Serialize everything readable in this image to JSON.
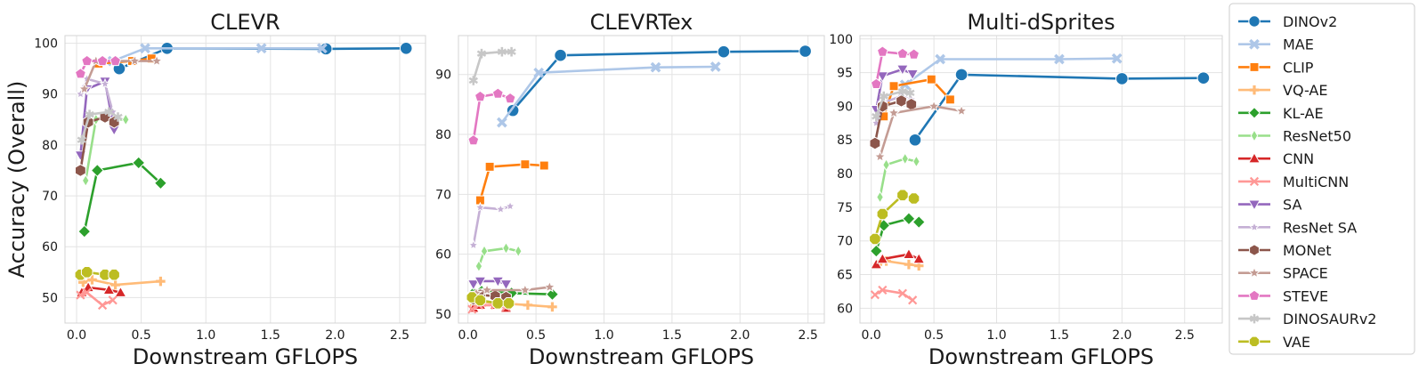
{
  "chart_data": {
    "type": "line",
    "ylabel": "Accuracy (Overall)",
    "legend_position": "right",
    "legend": [
      {
        "name": "DINOv2",
        "color": "#1f77b4",
        "marker": "circle"
      },
      {
        "name": "MAE",
        "color": "#aec7e8",
        "marker": "x"
      },
      {
        "name": "CLIP",
        "color": "#ff7f0e",
        "marker": "square"
      },
      {
        "name": "VQ-AE",
        "color": "#ffbb78",
        "marker": "plus"
      },
      {
        "name": "KL-AE",
        "color": "#2ca02c",
        "marker": "diamond"
      },
      {
        "name": "ResNet50",
        "color": "#98df8a",
        "marker": "thin-diamond"
      },
      {
        "name": "CNN",
        "color": "#d62728",
        "marker": "triangle-up"
      },
      {
        "name": "MultiCNN",
        "color": "#ff9896",
        "marker": "x-thin"
      },
      {
        "name": "SA",
        "color": "#9467bd",
        "marker": "triangle-down"
      },
      {
        "name": "ResNet SA",
        "color": "#c5b0d5",
        "marker": "star-small"
      },
      {
        "name": "MONet",
        "color": "#8c564b",
        "marker": "hexagon"
      },
      {
        "name": "SPACE",
        "color": "#c49c94",
        "marker": "star"
      },
      {
        "name": "STEVE",
        "color": "#e377c2",
        "marker": "pentagon"
      },
      {
        "name": "DINOSAURv2",
        "color": "#c7c7c7",
        "marker": "asterisk"
      },
      {
        "name": "VAE",
        "color": "#bcbd22",
        "marker": "octagon"
      }
    ],
    "panels": [
      {
        "title": "CLEVR",
        "xlabel": "Downstream GFLOPS",
        "xlim": [
          -0.09,
          2.7
        ],
        "ylim": [
          45,
          101.5
        ],
        "xticks": [
          0.0,
          0.5,
          1.0,
          1.5,
          2.0,
          2.5
        ],
        "yticks": [
          50,
          60,
          70,
          80,
          90,
          100
        ],
        "series": [
          {
            "name": "DINOv2",
            "x": [
              0.33,
              0.7,
              1.93,
              2.55
            ],
            "y": [
              95,
              99,
              98.9,
              99
            ]
          },
          {
            "name": "MAE",
            "x": [
              0.28,
              0.53,
              1.43,
              1.9
            ],
            "y": [
              96.5,
              99,
              99,
              99
            ]
          },
          {
            "name": "CLIP",
            "x": [
              0.17,
              0.43,
              0.58
            ],
            "y": [
              96,
              96.5,
              97
            ]
          },
          {
            "name": "VQ-AE",
            "x": [
              0.05,
              0.12,
              0.3,
              0.65
            ],
            "y": [
              53,
              53.5,
              52.5,
              53.2
            ]
          },
          {
            "name": "KL-AE",
            "x": [
              0.06,
              0.16,
              0.48,
              0.65
            ],
            "y": [
              63,
              75,
              76.5,
              72.5
            ]
          },
          {
            "name": "ResNet50",
            "x": [
              0.07,
              0.15,
              0.38
            ],
            "y": [
              73,
              85,
              85
            ]
          },
          {
            "name": "CNN",
            "x": [
              0.04,
              0.09,
              0.25,
              0.34
            ],
            "y": [
              51,
              52,
              51.5,
              51
            ]
          },
          {
            "name": "MultiCNN",
            "x": [
              0.03,
              0.08,
              0.2,
              0.28
            ],
            "y": [
              50.5,
              51,
              48.5,
              49.5
            ]
          },
          {
            "name": "SA",
            "x": [
              0.03,
              0.08,
              0.22,
              0.29
            ],
            "y": [
              78,
              91,
              92.5,
              83
            ]
          },
          {
            "name": "ResNet SA",
            "x": [
              0.03,
              0.08,
              0.22,
              0.28
            ],
            "y": [
              90,
              93,
              92,
              86.5
            ]
          },
          {
            "name": "MONet",
            "x": [
              0.03,
              0.09,
              0.22,
              0.29
            ],
            "y": [
              75,
              84.5,
              85.5,
              84.5
            ]
          },
          {
            "name": "SPACE",
            "x": [
              0.06,
              0.15,
              0.45,
              0.62
            ],
            "y": [
              91,
              96.5,
              96.5,
              96.5
            ]
          },
          {
            "name": "STEVE",
            "x": [
              0.03,
              0.08,
              0.2,
              0.3
            ],
            "y": [
              94,
              96.5,
              96.5,
              96.5
            ]
          },
          {
            "name": "DINOSAURv2",
            "x": [
              0.04,
              0.1,
              0.25,
              0.32
            ],
            "y": [
              81,
              86,
              86.5,
              85.5
            ]
          },
          {
            "name": "VAE",
            "x": [
              0.03,
              0.08,
              0.22,
              0.29
            ],
            "y": [
              54.5,
              55,
              54.5,
              54.5
            ]
          }
        ]
      },
      {
        "title": "CLEVRTex",
        "xlabel": "Downstream GFLOPS",
        "xlim": [
          -0.07,
          2.62
        ],
        "ylim": [
          48.5,
          96.5
        ],
        "xticks": [
          0.0,
          0.5,
          1.0,
          1.5,
          2.0,
          2.5
        ],
        "yticks": [
          50,
          60,
          70,
          80,
          90
        ],
        "series": [
          {
            "name": "DINOv2",
            "x": [
              0.33,
              0.68,
              1.88,
              2.48
            ],
            "y": [
              84,
              93.2,
              93.8,
              93.9
            ]
          },
          {
            "name": "MAE",
            "x": [
              0.25,
              0.52,
              1.38,
              1.82
            ],
            "y": [
              82,
              90.3,
              91.2,
              91.3
            ]
          },
          {
            "name": "CLIP",
            "x": [
              0.09,
              0.16,
              0.42,
              0.56
            ],
            "y": [
              69,
              74.6,
              75,
              74.8
            ]
          },
          {
            "name": "VQ-AE",
            "x": [
              0.05,
              0.12,
              0.44,
              0.62
            ],
            "y": [
              51.5,
              52,
              51.5,
              51.2
            ]
          },
          {
            "name": "KL-AE",
            "x": [
              0.04,
              0.1,
              0.32,
              0.62
            ],
            "y": [
              53.5,
              53.8,
              53.5,
              53.3
            ]
          },
          {
            "name": "ResNet50",
            "x": [
              0.08,
              0.12,
              0.28,
              0.37
            ],
            "y": [
              58,
              60.5,
              61,
              60.5
            ]
          },
          {
            "name": "CNN",
            "x": [
              0.04,
              0.09,
              0.2,
              0.28
            ],
            "y": [
              51,
              51.5,
              51.5,
              51
            ]
          },
          {
            "name": "MultiCNN",
            "x": [
              0.03,
              0.08,
              0.2,
              0.28
            ],
            "y": [
              50.8,
              51.5,
              51.5,
              51.2
            ]
          },
          {
            "name": "SA",
            "x": [
              0.04,
              0.09,
              0.22,
              0.28
            ],
            "y": [
              55,
              55.5,
              55.5,
              55
            ]
          },
          {
            "name": "ResNet SA",
            "x": [
              0.04,
              0.09,
              0.24,
              0.31
            ],
            "y": [
              61.5,
              67.8,
              67.5,
              68
            ]
          },
          {
            "name": "MONet",
            "x": [
              0.04,
              0.09,
              0.2,
              0.28
            ],
            "y": [
              52.5,
              53.2,
              53,
              52.8
            ]
          },
          {
            "name": "SPACE",
            "x": [
              0.06,
              0.14,
              0.42,
              0.6
            ],
            "y": [
              53.5,
              54,
              54,
              54.5
            ]
          },
          {
            "name": "STEVE",
            "x": [
              0.04,
              0.09,
              0.22,
              0.31
            ],
            "y": [
              79,
              86.3,
              86.8,
              86
            ]
          },
          {
            "name": "DINOSAURv2",
            "x": [
              0.04,
              0.1,
              0.25,
              0.32
            ],
            "y": [
              89,
              93.5,
              93.8,
              93.8
            ]
          },
          {
            "name": "VAE",
            "x": [
              0.03,
              0.09,
              0.22,
              0.3
            ],
            "y": [
              52.8,
              52.3,
              51.8,
              51.8
            ]
          }
        ]
      },
      {
        "title": "Multi-dSprites",
        "xlabel": "Downstream GFLOPS",
        "xlim": [
          -0.09,
          2.8
        ],
        "ylim": [
          57.8,
          100.5
        ],
        "xticks": [
          0.0,
          0.5,
          1.0,
          1.5,
          2.0,
          2.5
        ],
        "yticks": [
          60,
          65,
          70,
          75,
          80,
          85,
          90,
          95,
          100
        ],
        "series": [
          {
            "name": "DINOv2",
            "x": [
              0.35,
              0.72,
              2.0,
              2.65
            ],
            "y": [
              85,
              94.7,
              94.1,
              94.2
            ]
          },
          {
            "name": "MAE",
            "x": [
              0.27,
              0.55,
              1.5,
              1.96
            ],
            "y": [
              93.2,
              97,
              97,
              97.1
            ]
          },
          {
            "name": "CLIP",
            "x": [
              0.1,
              0.18,
              0.48,
              0.63
            ],
            "y": [
              88.5,
              93,
              94,
              91
            ]
          },
          {
            "name": "VQ-AE",
            "x": [
              0.05,
              0.12,
              0.3,
              0.38
            ],
            "y": [
              66.5,
              67,
              66.5,
              66.3
            ]
          },
          {
            "name": "KL-AE",
            "x": [
              0.04,
              0.1,
              0.3,
              0.38
            ],
            "y": [
              68.5,
              72.3,
              73.3,
              72.8
            ]
          },
          {
            "name": "ResNet50",
            "x": [
              0.07,
              0.12,
              0.27,
              0.36
            ],
            "y": [
              76.5,
              81.3,
              82.2,
              81.8
            ]
          },
          {
            "name": "CNN",
            "x": [
              0.04,
              0.09,
              0.3,
              0.38
            ],
            "y": [
              66.5,
              67.3,
              68,
              67.3
            ]
          },
          {
            "name": "MultiCNN",
            "x": [
              0.03,
              0.09,
              0.25,
              0.33
            ],
            "y": [
              62,
              62.7,
              62.2,
              61.2
            ]
          },
          {
            "name": "SA",
            "x": [
              0.04,
              0.09,
              0.25,
              0.33
            ],
            "y": [
              89.5,
              94.5,
              95.5,
              94.8
            ]
          },
          {
            "name": "ResNet SA",
            "x": [
              0.04,
              0.09,
              0.24,
              0.32
            ],
            "y": [
              87.5,
              90.5,
              91.5,
              91
            ]
          },
          {
            "name": "MONet",
            "x": [
              0.03,
              0.09,
              0.24,
              0.32
            ],
            "y": [
              84.5,
              90,
              90.8,
              90.3
            ]
          },
          {
            "name": "SPACE",
            "x": [
              0.07,
              0.18,
              0.5,
              0.72
            ],
            "y": [
              82.5,
              89,
              90,
              89.3
            ]
          },
          {
            "name": "STEVE",
            "x": [
              0.04,
              0.09,
              0.25,
              0.34
            ],
            "y": [
              93.3,
              98.1,
              97.8,
              97.7
            ]
          },
          {
            "name": "DINOSAURv2",
            "x": [
              0.04,
              0.1,
              0.25,
              0.31
            ],
            "y": [
              88.5,
              91.5,
              92.2,
              92
            ]
          },
          {
            "name": "VAE",
            "x": [
              0.03,
              0.09,
              0.25,
              0.34
            ],
            "y": [
              70.3,
              74,
              76.8,
              76.3
            ]
          }
        ]
      }
    ]
  }
}
